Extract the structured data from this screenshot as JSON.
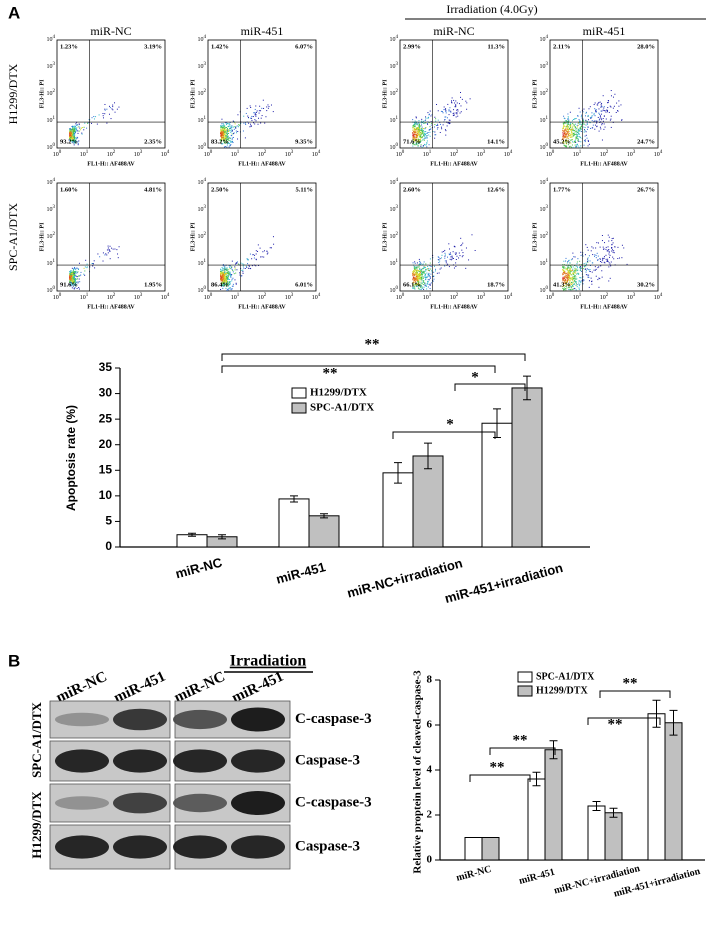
{
  "panel_labels": [
    "A",
    "B"
  ],
  "flow": {
    "header_group": "Irradiation (4.0Gy)",
    "columns": [
      "miR-NC",
      "miR-451",
      "miR-NC",
      "miR-451"
    ],
    "rows": [
      "H1299/DTX",
      "SPC-A1/DTX"
    ],
    "x_label": "FL1-H:: AF488AV",
    "y_label": "FL3-H:: PI",
    "tick_base": "10",
    "tick_exponents": [
      "0",
      "1",
      "2",
      "3",
      "4"
    ],
    "quadrants": [
      [
        [
          "1.23%",
          "3.19%",
          "93.2%",
          "2.35%"
        ],
        [
          "1.42%",
          "6.07%",
          "83.2%",
          "9.35%"
        ],
        [
          "2.99%",
          "11.3%",
          "71.6%",
          "14.1%"
        ],
        [
          "2.11%",
          "28.0%",
          "45.2%",
          "24.7%"
        ]
      ],
      [
        [
          "1.60%",
          "4.81%",
          "91.6%",
          "1.95%"
        ],
        [
          "2.50%",
          "5.11%",
          "86.4%",
          "6.01%"
        ],
        [
          "2.60%",
          "12.6%",
          "66.1%",
          "18.7%"
        ],
        [
          "1.77%",
          "26.7%",
          "41.3%",
          "30.2%"
        ]
      ]
    ]
  },
  "blot": {
    "header": "Irradiation",
    "lanes": [
      "miR-NC",
      "miR-451",
      "miR-NC",
      "miR-451"
    ],
    "bands": [
      "C-caspase-3",
      "Caspase-3",
      "C-caspase-3",
      "Caspase-3"
    ],
    "cell_lines": [
      "SPC-A1/DTX",
      "H1299/DTX"
    ]
  },
  "chart_data": [
    {
      "type": "bar",
      "y_label": "Apoptosis rate (%)",
      "categories": [
        "miR-NC",
        "miR-451",
        "miR-NC+irradiation",
        "miR-451+irradiation"
      ],
      "series": [
        {
          "name": "H1299/DTX",
          "color": "#ffffff",
          "values": [
            2.4,
            9.4,
            14.5,
            24.2
          ],
          "errors": [
            0.3,
            0.6,
            2.0,
            2.8
          ]
        },
        {
          "name": "SPC-A1/DTX",
          "color": "#c0c0c0",
          "values": [
            2.0,
            6.1,
            17.8,
            31.1
          ],
          "errors": [
            0.4,
            0.4,
            2.5,
            2.3
          ]
        }
      ],
      "ylim": [
        0,
        35
      ],
      "yticks": [
        0,
        5,
        10,
        15,
        20,
        25,
        30,
        35
      ],
      "annotations": [
        "**",
        "**",
        "*",
        "*"
      ]
    },
    {
      "type": "bar",
      "y_label": "Relative proptein level of cleaved-caspase-3",
      "categories": [
        "miR-NC",
        "miR-451",
        "miR-NC+irradiation",
        "miR-451+irradiation"
      ],
      "series": [
        {
          "name": "SPC-A1/DTX",
          "color": "#ffffff",
          "values": [
            1,
            3.6,
            2.4,
            6.5
          ],
          "errors": [
            0,
            0.3,
            0.2,
            0.6
          ]
        },
        {
          "name": "H1299/DTX",
          "color": "#c0c0c0",
          "values": [
            1,
            4.9,
            2.1,
            6.1
          ],
          "errors": [
            0,
            0.4,
            0.2,
            0.55
          ]
        }
      ],
      "ylim": [
        0,
        8
      ],
      "yticks": [
        0,
        2,
        4,
        6,
        8
      ],
      "annotations": [
        "**",
        "**",
        "**",
        "**"
      ]
    }
  ]
}
